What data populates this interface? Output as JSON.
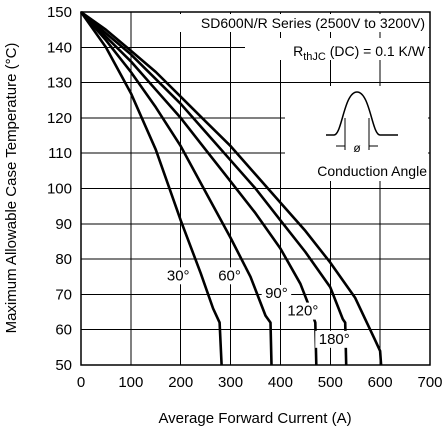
{
  "chart_data": {
    "type": "line",
    "title_line1": "SD600N/R Series (2500V to 3200V)",
    "title_line2_main": "R",
    "title_line2_sub": "thJC",
    "title_line2_rest": " (DC) = 0.1 K/W",
    "inset_label": "Conduction Angle",
    "inset_symbol": "ø",
    "xlabel": "Average Forward Current (A)",
    "ylabel": "Maximum Allowable Case Temperature (°C)",
    "xlim": [
      0,
      700
    ],
    "ylim": [
      50,
      150
    ],
    "xticks": [
      0,
      100,
      200,
      300,
      400,
      500,
      600,
      700
    ],
    "yticks": [
      50,
      60,
      70,
      80,
      90,
      100,
      110,
      120,
      130,
      140,
      150
    ],
    "grid": true,
    "series": [
      {
        "name": "30°",
        "points": [
          [
            0,
            150
          ],
          [
            50,
            140
          ],
          [
            100,
            127
          ],
          [
            150,
            111
          ],
          [
            200,
            91
          ],
          [
            240,
            76
          ],
          [
            265,
            66
          ],
          [
            278,
            62
          ],
          [
            282,
            50
          ]
        ]
      },
      {
        "name": "60°",
        "points": [
          [
            0,
            150
          ],
          [
            50,
            142
          ],
          [
            100,
            133
          ],
          [
            150,
            123
          ],
          [
            200,
            112
          ],
          [
            250,
            99
          ],
          [
            300,
            86
          ],
          [
            340,
            75
          ],
          [
            370,
            64
          ],
          [
            380,
            62
          ],
          [
            382,
            50
          ]
        ]
      },
      {
        "name": "90°",
        "points": [
          [
            0,
            150
          ],
          [
            50,
            143
          ],
          [
            100,
            136
          ],
          [
            150,
            128
          ],
          [
            200,
            120
          ],
          [
            250,
            111
          ],
          [
            300,
            102
          ],
          [
            350,
            93
          ],
          [
            400,
            83
          ],
          [
            440,
            73
          ],
          [
            465,
            64
          ],
          [
            470,
            62
          ],
          [
            472,
            50
          ]
        ]
      },
      {
        "name": "120°",
        "points": [
          [
            0,
            150
          ],
          [
            50,
            144
          ],
          [
            100,
            138
          ],
          [
            150,
            131
          ],
          [
            200,
            124
          ],
          [
            250,
            116
          ],
          [
            300,
            108
          ],
          [
            350,
            100
          ],
          [
            400,
            91
          ],
          [
            450,
            82
          ],
          [
            500,
            72
          ],
          [
            525,
            63
          ],
          [
            530,
            62
          ],
          [
            532,
            50
          ]
        ]
      },
      {
        "name": "180°",
        "points": [
          [
            0,
            150
          ],
          [
            50,
            145
          ],
          [
            100,
            139
          ],
          [
            150,
            133
          ],
          [
            200,
            126
          ],
          [
            250,
            119
          ],
          [
            300,
            112
          ],
          [
            350,
            104
          ],
          [
            400,
            96
          ],
          [
            450,
            88
          ],
          [
            500,
            79
          ],
          [
            550,
            69
          ],
          [
            590,
            57
          ],
          [
            600,
            54
          ],
          [
            602,
            50
          ]
        ]
      }
    ]
  }
}
